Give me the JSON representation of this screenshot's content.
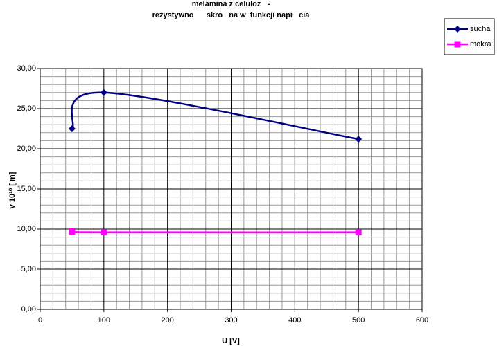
{
  "chart_data": {
    "type": "line",
    "title": [
      "melamina z celuloz   -",
      "rezystywno      skro   na w  funkcji napi   cia"
    ],
    "x_label": "U [V]",
    "y_label": "v 10¹⁰ [ m]",
    "xlim": [
      0,
      600
    ],
    "xticks": [
      0,
      100,
      200,
      300,
      400,
      500,
      600
    ],
    "ylim": [
      0,
      30
    ],
    "yticks": [
      {
        "value": 0,
        "label": "0,00"
      },
      {
        "value": 5,
        "label": "5,00"
      },
      {
        "value": 10,
        "label": "10,00"
      },
      {
        "value": 15,
        "label": "15,00"
      },
      {
        "value": 20,
        "label": "20,00"
      },
      {
        "value": 25,
        "label": "25,00"
      },
      {
        "value": 30,
        "label": "30,00"
      }
    ],
    "grid": true,
    "legend": "right",
    "smooth": true,
    "series": [
      {
        "name": "sucha",
        "color": "#000080",
        "marker": "diamond",
        "x": [
          50,
          100,
          500
        ],
        "values": [
          22.5,
          27.0,
          21.2
        ]
      },
      {
        "name": "mokra",
        "color": "#ff00ff",
        "marker": "square",
        "x": [
          50,
          100,
          500
        ],
        "values": [
          9.7,
          9.6,
          9.6
        ]
      }
    ]
  }
}
